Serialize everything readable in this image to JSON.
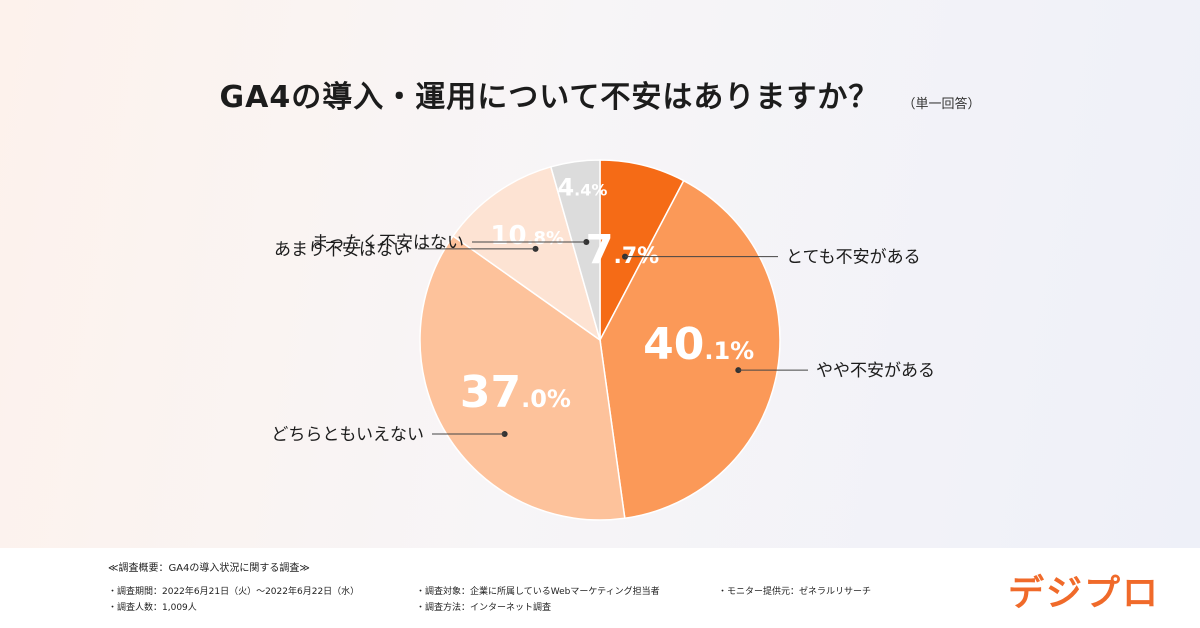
{
  "header": {
    "title": "GA4の導入・運用について不安はありますか？",
    "note": "（単一回答）"
  },
  "chart_data": {
    "type": "pie",
    "title": "GA4の導入・運用について不安はありますか？",
    "slices": [
      {
        "label": "とても不安がある",
        "value": 7.7,
        "int": "7",
        "dec": ".7%",
        "color": "#f56b16"
      },
      {
        "label": "やや不安がある",
        "value": 40.1,
        "int": "40",
        "dec": ".1%",
        "color": "#fb9958"
      },
      {
        "label": "どちらともいえない",
        "value": 37.0,
        "int": "37",
        "dec": ".0%",
        "color": "#fdc29b"
      },
      {
        "label": "あまり不安はない",
        "value": 10.8,
        "int": "10",
        "dec": ".8%",
        "color": "#fde3d3"
      },
      {
        "label": "まったく不安はない",
        "value": 4.4,
        "int": "4",
        "dec": ".4%",
        "color": "#dcdcdc"
      }
    ],
    "start": "12 o'clock",
    "direction": "clockwise"
  },
  "footer": {
    "survey_title": "≪調査概要：GA4の導入状況に関する調査≫",
    "items": [
      "・調査期間：2022年6月21日（火）〜2022年6月22日（水）",
      "・調査人数：1,009人",
      "・調査対象：企業に所属しているWebマーケティング担当者",
      "・調査方法：インターネット調査",
      "・モニター提供元：ゼネラルリサーチ"
    ],
    "logo": "デジプロ"
  }
}
